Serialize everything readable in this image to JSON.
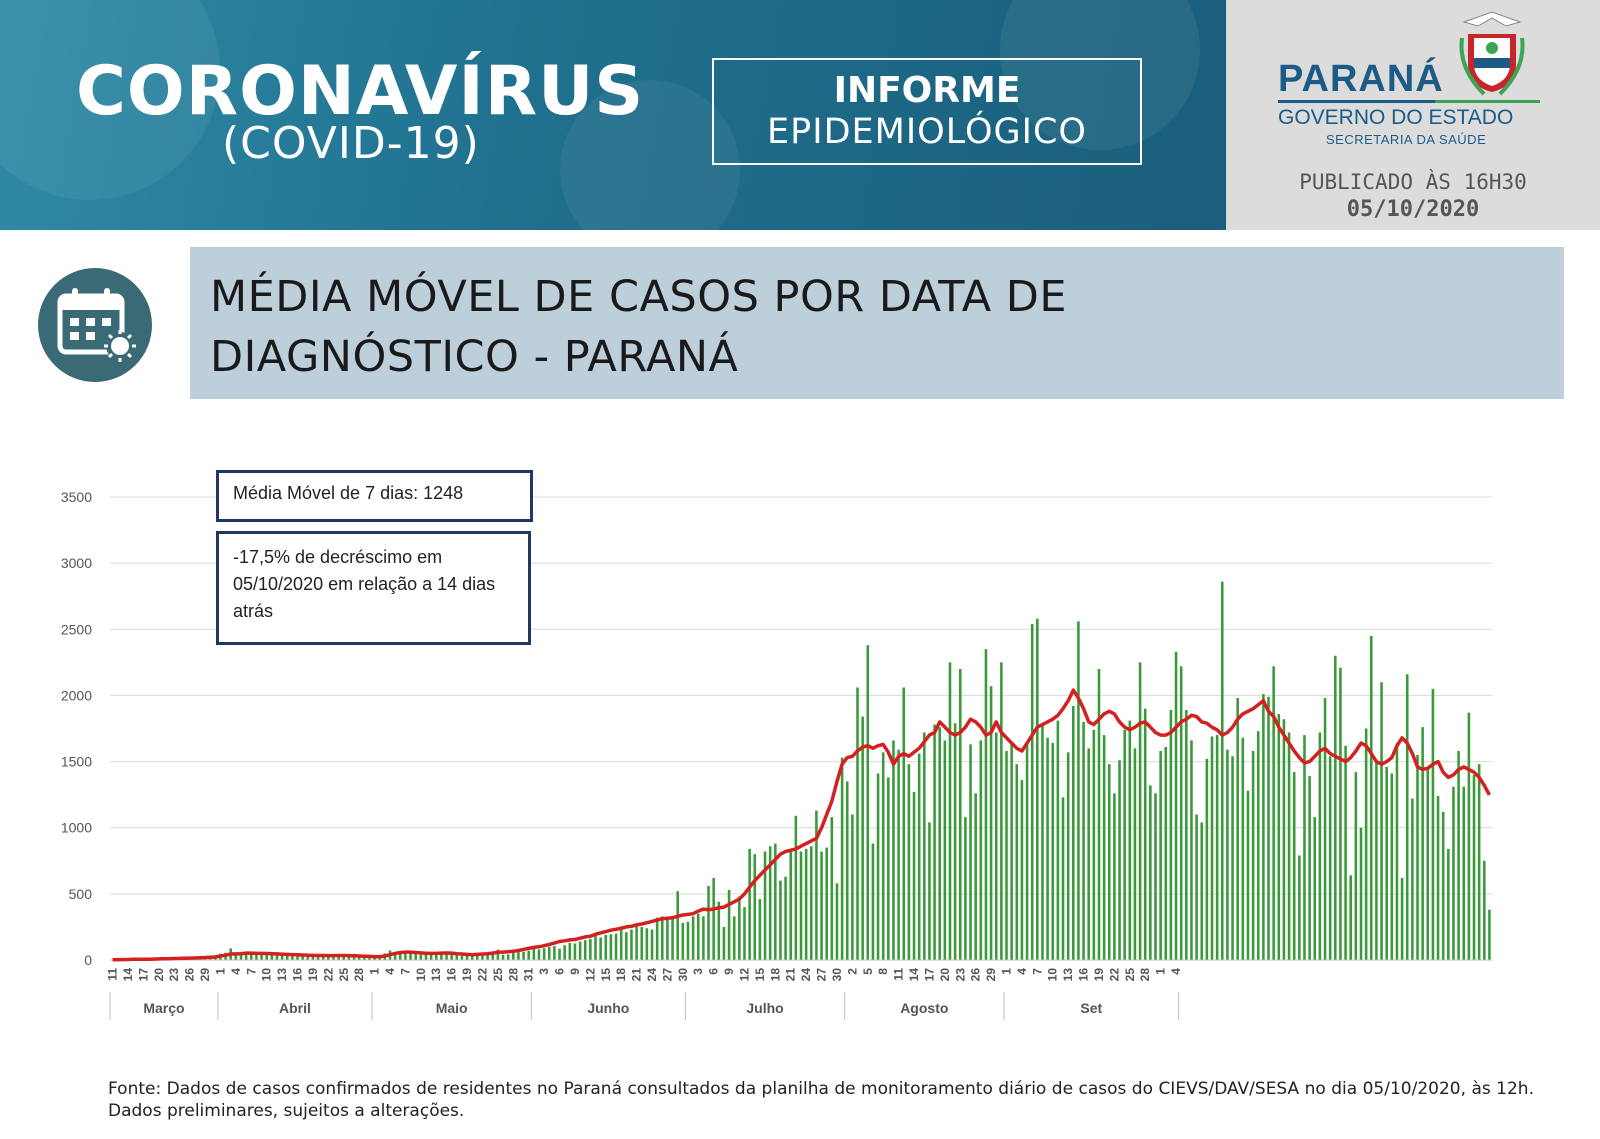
{
  "header": {
    "brand_title": "CORONAVÍRUS",
    "brand_subtitle": "(COVID-19)",
    "informe_line1": "INFORME",
    "informe_line2": "EPIDEMIOLÓGICO",
    "state_name": "PARANÁ",
    "government": "GOVERNO DO ESTADO",
    "secretariat": "SECRETARIA DA SAÚDE",
    "published_label": "PUBLICADO ÀS 16H30",
    "published_date": "05/10/2020"
  },
  "section": {
    "title_line1": "MÉDIA MÓVEL DE CASOS POR DATA DE",
    "title_line2": "DIAGNÓSTICO - PARANÁ",
    "icon": "calendar-virus-icon"
  },
  "callouts": {
    "moving_average": "Média Móvel de 7 dias: 1248",
    "decrease": "-17,5% de decréscimo em 05/10/2020  em relação a 14 dias atrás"
  },
  "footer": {
    "source": "Fonte: Dados de casos confirmados de residentes no Paraná consultados da planilha de monitoramento diário de casos do CIEVS/DAV/SESA no dia 05/10/2020, às 12h. Dados preliminares, sujeitos a alterações."
  },
  "colors": {
    "bar": "#3a9a3a",
    "line": "#d42020",
    "banner": "#1f6f8d",
    "title_bar": "#bccfda",
    "callout_border": "#1f3864"
  },
  "chart_data": {
    "type": "bar",
    "ylim": [
      0,
      3500
    ],
    "yticks": [
      0,
      500,
      1000,
      1500,
      2000,
      2500,
      3000,
      3500
    ],
    "grid": true,
    "months": [
      {
        "label": "Março",
        "start": "2020-03-11",
        "end": "2020-03-31"
      },
      {
        "label": "Abril",
        "start": "2020-04-01",
        "end": "2020-04-30"
      },
      {
        "label": "Maio",
        "start": "2020-05-01",
        "end": "2020-05-31"
      },
      {
        "label": "Junho",
        "start": "2020-06-01",
        "end": "2020-06-30"
      },
      {
        "label": "Julho",
        "start": "2020-07-01",
        "end": "2020-07-31"
      },
      {
        "label": "Agosto",
        "start": "2020-08-01",
        "end": "2020-08-31"
      },
      {
        "label": "Set",
        "start": "2020-09-01",
        "end": "2020-10-04"
      }
    ],
    "x_ticks": [
      "11",
      "14",
      "17",
      "20",
      "23",
      "26",
      "29",
      "1",
      "4",
      "7",
      "10",
      "13",
      "16",
      "19",
      "22",
      "25",
      "28",
      "1",
      "4",
      "7",
      "10",
      "13",
      "16",
      "19",
      "22",
      "25",
      "28",
      "31",
      "3",
      "6",
      "9",
      "12",
      "15",
      "18",
      "21",
      "24",
      "27",
      "30",
      "3",
      "6",
      "9",
      "12",
      "15",
      "18",
      "21",
      "24",
      "27",
      "30",
      "2",
      "5",
      "8",
      "11",
      "14",
      "17",
      "20",
      "23",
      "26",
      "29",
      "1",
      "4",
      "7",
      "10",
      "13",
      "16",
      "19",
      "22",
      "25",
      "28",
      "1",
      "4"
    ],
    "series": [
      {
        "type": "bar",
        "x_start": "2020-03-11",
        "values": [
          2,
          3,
          3,
          4,
          5,
          5,
          6,
          6,
          7,
          8,
          9,
          10,
          12,
          12,
          14,
          15,
          16,
          18,
          20,
          22,
          25,
          48,
          55,
          88,
          40,
          52,
          60,
          58,
          62,
          50,
          48,
          40,
          45,
          30,
          38,
          42,
          45,
          35,
          30,
          32,
          28,
          38,
          42,
          30,
          34,
          35,
          32,
          25,
          28,
          22,
          20,
          25,
          30,
          50,
          72,
          60,
          65,
          68,
          55,
          45,
          40,
          42,
          48,
          58,
          60,
          55,
          45,
          40,
          35,
          30,
          38,
          42,
          48,
          55,
          50,
          78,
          40,
          42,
          55,
          60,
          62,
          70,
          88,
          80,
          90,
          100,
          105,
          85,
          112,
          130,
          125,
          140,
          150,
          160,
          185,
          170,
          190,
          195,
          200,
          255,
          210,
          230,
          280,
          250,
          240,
          230,
          320,
          330,
          310,
          320,
          520,
          280,
          290,
          330,
          350,
          330,
          560,
          620,
          440,
          250,
          530,
          330,
          480,
          400,
          840,
          800,
          460,
          820,
          860,
          880,
          600,
          630,
          820,
          1090,
          820,
          840,
          860,
          1130,
          820,
          850,
          1080,
          580,
          1530,
          1350,
          1100,
          2060,
          1840,
          2380,
          880,
          1410,
          1570,
          1380,
          1660,
          1590,
          2060,
          1480,
          1270,
          1560,
          1720,
          1040,
          1780,
          1760,
          1660,
          2250,
          1790,
          2200,
          1080,
          1630,
          1260,
          1660,
          2350,
          2070,
          1720,
          2250,
          1580,
          1630,
          1480,
          1360,
          1640,
          2540,
          2580,
          1780,
          1680,
          1640,
          1810,
          1230,
          1570,
          1920,
          2560,
          1800,
          1600,
          1740,
          2200,
          1700,
          1480,
          1260,
          1510,
          1740,
          1810,
          1600,
          2250,
          1900,
          1320,
          1260,
          1580,
          1610,
          1890,
          2330,
          2220,
          1890,
          1660,
          1100,
          1040,
          1520,
          1690,
          1700,
          2860,
          1590,
          1540,
          1980,
          1680,
          1280,
          1580,
          1730,
          2010,
          1990,
          2220,
          1860,
          1820,
          1720,
          1420,
          790,
          1700,
          1390,
          1080,
          1720,
          1980,
          1540,
          2300,
          2210,
          1620,
          640,
          1420,
          1000,
          1750,
          2450,
          1500,
          2100,
          1460,
          1410,
          1640,
          620,
          2160,
          1220,
          1550,
          1760,
          1440,
          2050,
          1240,
          1120,
          840,
          1310,
          1580,
          1310,
          1870,
          1400,
          1480,
          750,
          380
        ]
      },
      {
        "type": "line",
        "name": "Média Móvel de 7 dias",
        "x_start": "2020-03-11",
        "values": [
          2,
          3,
          3,
          4,
          5,
          5,
          6,
          6,
          7,
          8,
          9,
          10,
          11,
          12,
          13,
          14,
          15,
          17,
          19,
          21,
          23,
          30,
          36,
          45,
          46,
          48,
          52,
          52,
          50,
          50,
          49,
          48,
          46,
          44,
          42,
          41,
          40,
          38,
          36,
          35,
          34,
          34,
          33,
          33,
          34,
          34,
          33,
          32,
          30,
          29,
          27,
          26,
          25,
          30,
          40,
          50,
          56,
          60,
          60,
          57,
          54,
          51,
          50,
          50,
          52,
          53,
          52,
          48,
          45,
          42,
          40,
          42,
          45,
          48,
          52,
          58,
          60,
          62,
          66,
          72,
          80,
          88,
          95,
          100,
          108,
          118,
          128,
          140,
          145,
          152,
          155,
          165,
          175,
          180,
          195,
          205,
          215,
          225,
          232,
          240,
          250,
          255,
          265,
          272,
          282,
          292,
          302,
          312,
          315,
          320,
          330,
          340,
          345,
          350,
          370,
          385,
          380,
          385,
          395,
          400,
          420,
          440,
          460,
          500,
          550,
          600,
          640,
          680,
          720,
          760,
          800,
          820,
          830,
          840,
          860,
          880,
          900,
          920,
          1000,
          1100,
          1200,
          1350,
          1480,
          1530,
          1540,
          1580,
          1610,
          1620,
          1600,
          1620,
          1630,
          1570,
          1480,
          1540,
          1560,
          1540,
          1570,
          1600,
          1650,
          1700,
          1720,
          1800,
          1760,
          1720,
          1700,
          1720,
          1760,
          1820,
          1800,
          1760,
          1700,
          1720,
          1800,
          1720,
          1680,
          1640,
          1600,
          1580,
          1640,
          1700,
          1760,
          1780,
          1800,
          1820,
          1850,
          1900,
          1960,
          2040,
          1980,
          1900,
          1800,
          1780,
          1820,
          1860,
          1880,
          1860,
          1800,
          1760,
          1740,
          1760,
          1790,
          1800,
          1760,
          1720,
          1700,
          1700,
          1720,
          1760,
          1800,
          1820,
          1850,
          1840,
          1800,
          1790,
          1760,
          1740,
          1700,
          1720,
          1760,
          1820,
          1860,
          1880,
          1900,
          1930,
          1960,
          1880,
          1840,
          1760,
          1700,
          1640,
          1580,
          1530,
          1490,
          1500,
          1540,
          1580,
          1600,
          1560,
          1540,
          1520,
          1500,
          1530,
          1580,
          1640,
          1620,
          1560,
          1500,
          1480,
          1500,
          1530,
          1620,
          1680,
          1640,
          1560,
          1460,
          1440,
          1450,
          1480,
          1500,
          1420,
          1380,
          1400,
          1440,
          1460,
          1440,
          1420,
          1380,
          1320,
          1248
        ]
      }
    ]
  }
}
